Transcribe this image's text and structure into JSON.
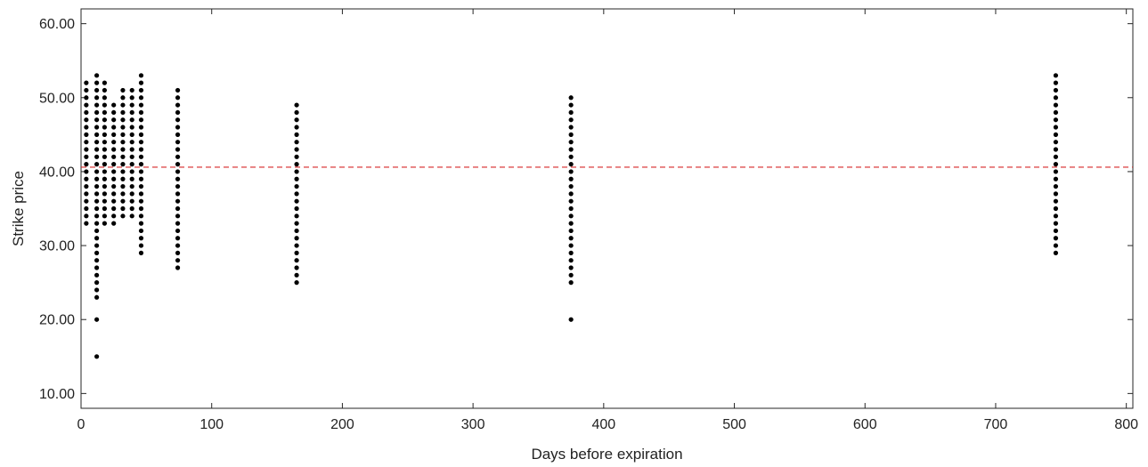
{
  "chart_data": {
    "type": "scatter",
    "title": "",
    "xlabel": "Days before expiration",
    "ylabel": "Strike price",
    "xlim": [
      0,
      805
    ],
    "ylim": [
      8,
      62
    ],
    "xticks": [
      0,
      100,
      200,
      300,
      400,
      500,
      600,
      700,
      800
    ],
    "xtick_labels": [
      "0",
      "100",
      "200",
      "300",
      "400",
      "500",
      "600",
      "700",
      "800"
    ],
    "yticks": [
      10,
      20,
      30,
      40,
      50,
      60
    ],
    "ytick_labels": [
      "10.00",
      "20.00",
      "30.00",
      "40.00",
      "50.00",
      "60.00"
    ],
    "grid": false,
    "marker_color": "#000000",
    "reference_line": {
      "orientation": "horizontal",
      "y": 40.6,
      "style": "dashed",
      "color": "#d62728"
    },
    "groups": [
      {
        "x": 4,
        "y": [
          33,
          34,
          35,
          36,
          37,
          38,
          39,
          40,
          41,
          42,
          43,
          44,
          45,
          46,
          47,
          48,
          49,
          50,
          51,
          52
        ]
      },
      {
        "x": 12,
        "y": [
          15,
          20,
          23,
          24,
          25,
          26,
          27,
          28,
          29,
          30,
          31,
          32,
          33,
          34,
          35,
          36,
          37,
          38,
          39,
          40,
          41,
          42,
          43,
          44,
          45,
          46,
          47,
          48,
          49,
          50,
          51,
          52,
          53
        ]
      },
      {
        "x": 18,
        "y": [
          33,
          34,
          35,
          36,
          37,
          38,
          39,
          40,
          41,
          42,
          43,
          44,
          45,
          46,
          47,
          48,
          49,
          50,
          51,
          52
        ]
      },
      {
        "x": 25,
        "y": [
          33,
          34,
          35,
          36,
          37,
          38,
          39,
          40,
          41,
          42,
          43,
          44,
          45,
          46,
          47,
          48,
          49
        ]
      },
      {
        "x": 32,
        "y": [
          34,
          35,
          36,
          37,
          38,
          39,
          40,
          41,
          42,
          43,
          44,
          45,
          46,
          47,
          48,
          49,
          50,
          51
        ]
      },
      {
        "x": 39,
        "y": [
          34,
          35,
          36,
          37,
          38,
          39,
          40,
          41,
          42,
          43,
          44,
          45,
          46,
          47,
          48,
          49,
          50,
          51
        ]
      },
      {
        "x": 46,
        "y": [
          29,
          30,
          31,
          32,
          33,
          34,
          35,
          36,
          37,
          38,
          39,
          40,
          41,
          42,
          43,
          44,
          45,
          46,
          47,
          48,
          49,
          50,
          51,
          52,
          53
        ]
      },
      {
        "x": 74,
        "y": [
          27,
          28,
          29,
          30,
          31,
          32,
          33,
          34,
          35,
          36,
          37,
          38,
          39,
          40,
          41,
          42,
          43,
          44,
          45,
          46,
          47,
          48,
          49,
          50,
          51
        ]
      },
      {
        "x": 165,
        "y": [
          25,
          26,
          27,
          28,
          29,
          30,
          31,
          32,
          33,
          34,
          35,
          36,
          37,
          38,
          39,
          40,
          41,
          42,
          43,
          44,
          45,
          46,
          47,
          48,
          49
        ]
      },
      {
        "x": 375,
        "y": [
          20,
          25,
          26,
          27,
          28,
          29,
          30,
          31,
          32,
          33,
          34,
          35,
          36,
          37,
          38,
          39,
          40,
          41,
          42,
          43,
          44,
          45,
          46,
          47,
          48,
          49,
          50
        ]
      },
      {
        "x": 746,
        "y": [
          29,
          30,
          31,
          32,
          33,
          34,
          35,
          36,
          37,
          38,
          39,
          40,
          41,
          42,
          43,
          44,
          45,
          46,
          47,
          48,
          49,
          50,
          51,
          52,
          53
        ]
      }
    ]
  }
}
